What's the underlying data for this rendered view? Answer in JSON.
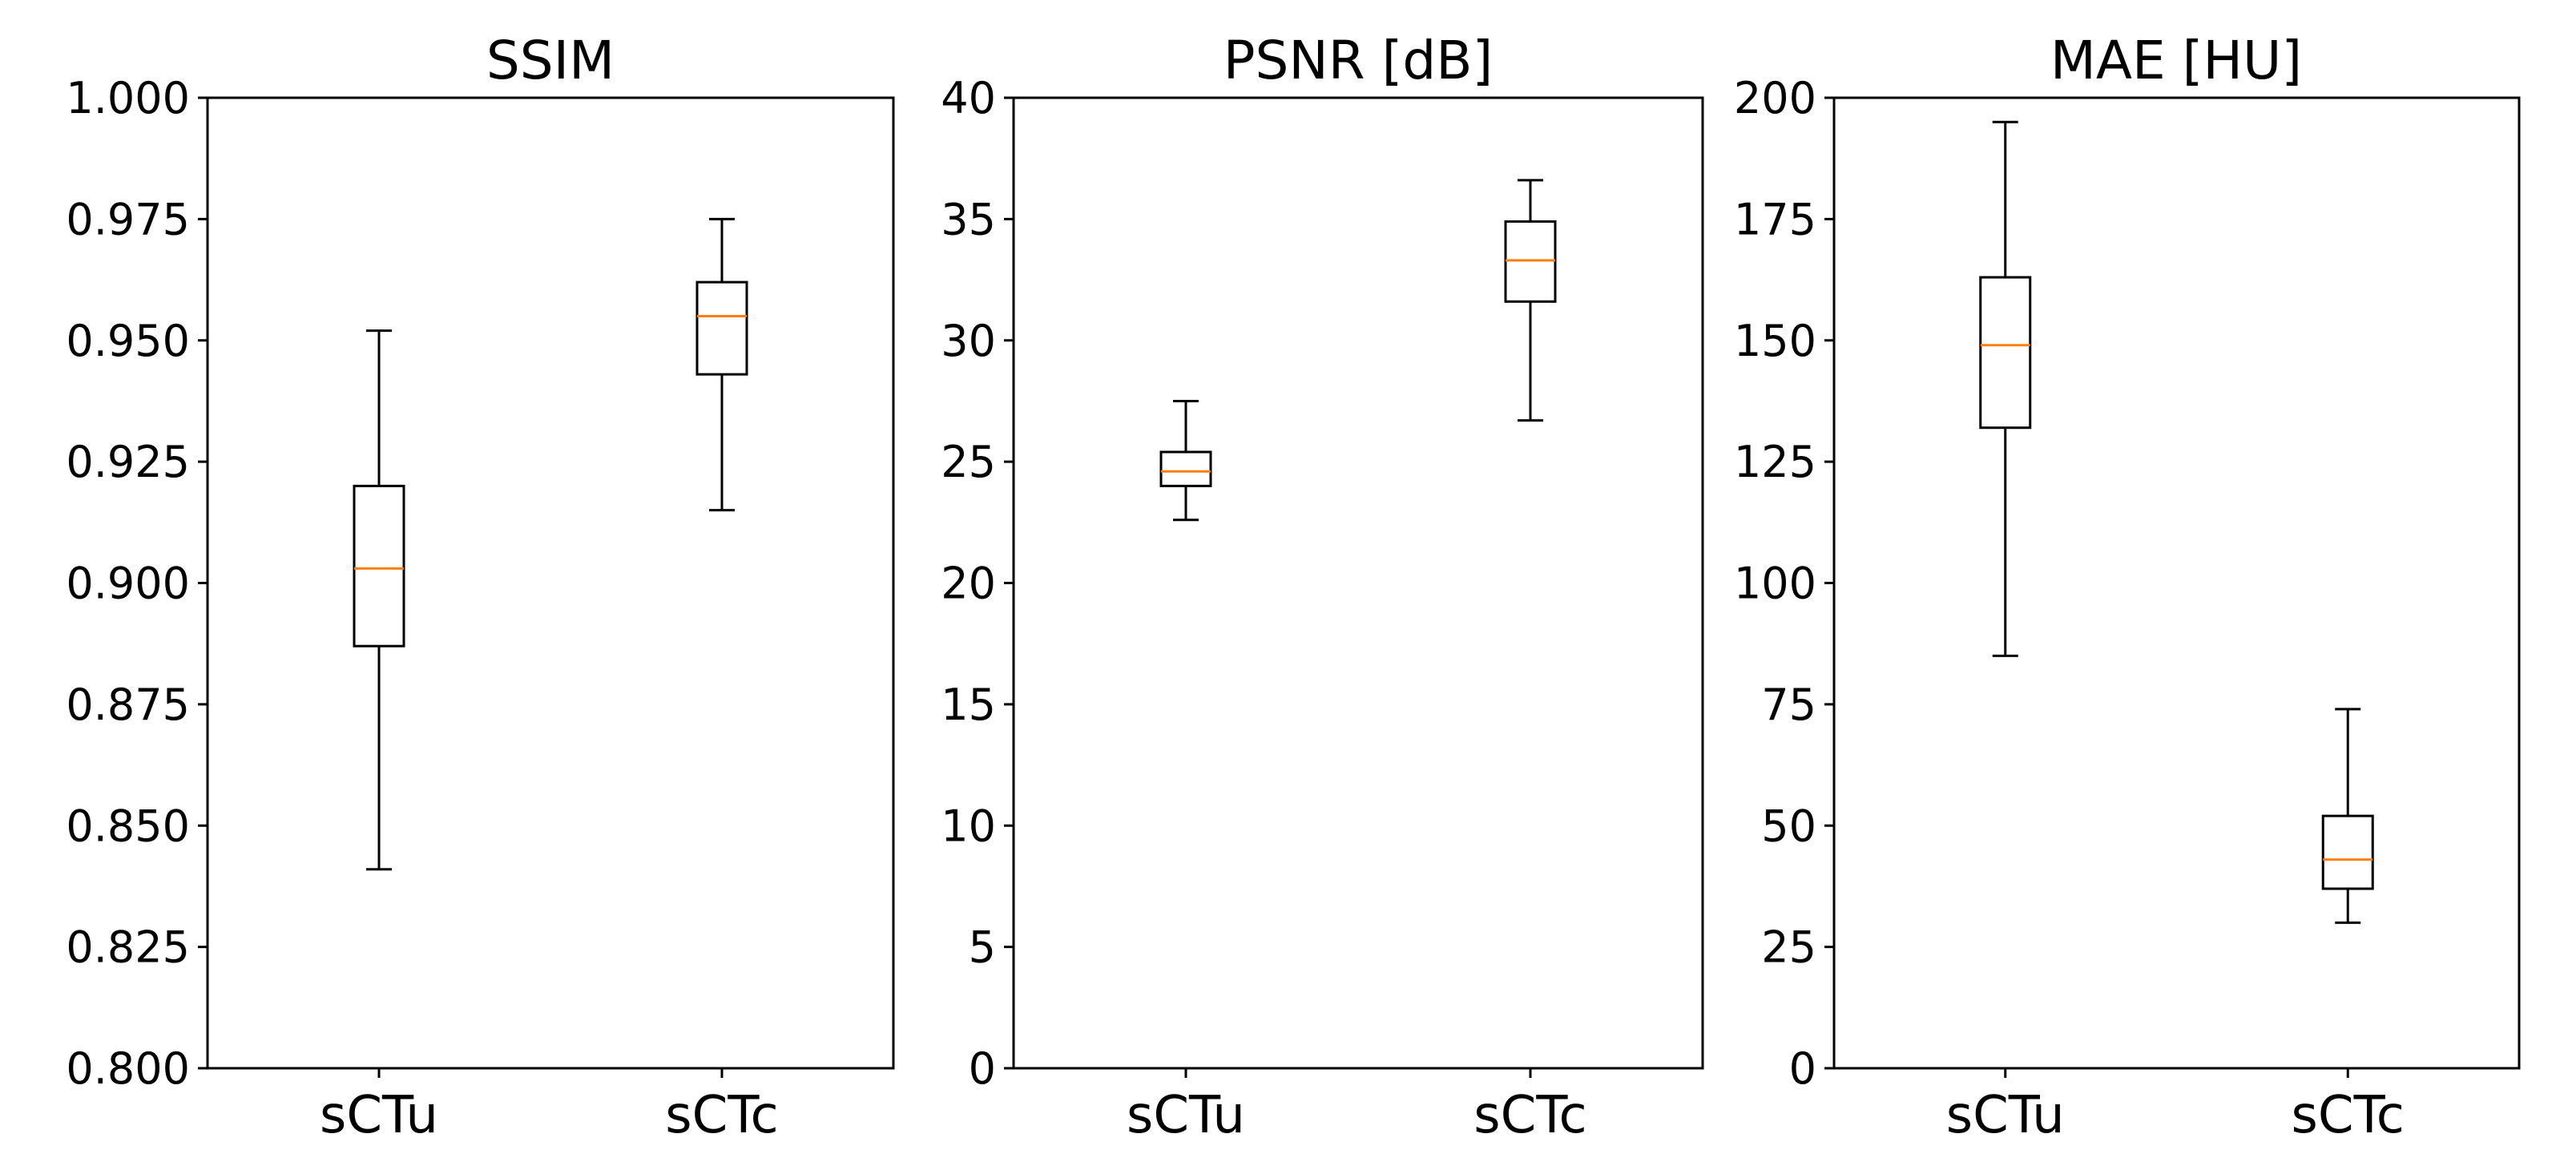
{
  "chart_data": [
    {
      "type": "box",
      "title": "SSIM",
      "xlabel": "",
      "ylabel": "",
      "categories": [
        "sCTu",
        "sCTc"
      ],
      "ylim": [
        0.8,
        1.0
      ],
      "yticks": [
        "0.800",
        "0.825",
        "0.850",
        "0.875",
        "0.900",
        "0.925",
        "0.950",
        "0.975",
        "1.000"
      ],
      "boxes": [
        {
          "label": "sCTu",
          "whisker_low": 0.841,
          "q1": 0.887,
          "median": 0.903,
          "q3": 0.92,
          "whisker_high": 0.952
        },
        {
          "label": "sCTc",
          "whisker_low": 0.915,
          "q1": 0.943,
          "median": 0.955,
          "q3": 0.962,
          "whisker_high": 0.975
        }
      ],
      "grid": false
    },
    {
      "type": "box",
      "title": "PSNR [dB]",
      "xlabel": "",
      "ylabel": "",
      "categories": [
        "sCTu",
        "sCTc"
      ],
      "ylim": [
        0,
        40
      ],
      "yticks": [
        "0",
        "5",
        "10",
        "15",
        "20",
        "25",
        "30",
        "35",
        "40"
      ],
      "boxes": [
        {
          "label": "sCTu",
          "whisker_low": 22.6,
          "q1": 24.0,
          "median": 24.6,
          "q3": 25.4,
          "whisker_high": 27.5
        },
        {
          "label": "sCTc",
          "whisker_low": 26.7,
          "q1": 31.6,
          "median": 33.3,
          "q3": 34.9,
          "whisker_high": 36.6
        }
      ],
      "grid": false
    },
    {
      "type": "box",
      "title": "MAE [HU]",
      "xlabel": "",
      "ylabel": "",
      "categories": [
        "sCTu",
        "sCTc"
      ],
      "ylim": [
        0,
        200
      ],
      "yticks": [
        "0",
        "25",
        "50",
        "75",
        "100",
        "125",
        "150",
        "175",
        "200"
      ],
      "boxes": [
        {
          "label": "sCTu",
          "whisker_low": 85,
          "q1": 132,
          "median": 149,
          "q3": 163,
          "whisker_high": 195
        },
        {
          "label": "sCTc",
          "whisker_low": 30,
          "q1": 37,
          "median": 43,
          "q3": 52,
          "whisker_high": 74
        }
      ],
      "grid": false
    }
  ],
  "colors": {
    "median_line": "#ff7f0e",
    "box_edge": "#000000",
    "axes": "#000000",
    "background": "#ffffff"
  }
}
